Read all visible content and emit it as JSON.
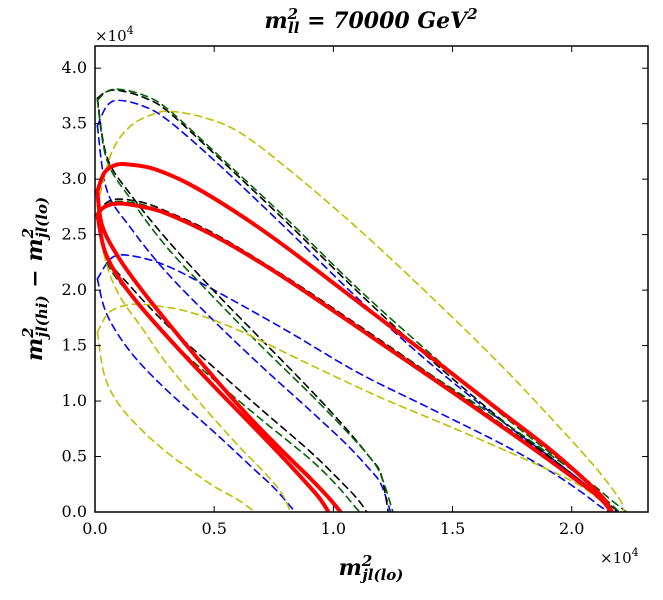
{
  "chart_data": {
    "type": "line",
    "title": {
      "main": "m",
      "sup": "2",
      "sub": "ll",
      "rest": " = 70000 GeV",
      "rest_sup": "2"
    },
    "xlabel": {
      "main": "m",
      "sup": "2",
      "sub": "jl(lo)"
    },
    "ylabel": {
      "a": "m",
      "a_sup": "2",
      "a_sub": "jl(hi)",
      "minus": " − ",
      "b": "m",
      "b_sup": "2",
      "b_sub": "jl(lo)"
    },
    "xlim": [
      0,
      23200
    ],
    "ylim": [
      0,
      42000
    ],
    "x_ticks": [
      0,
      5000,
      10000,
      15000,
      20000
    ],
    "x_tick_labels": [
      "0.0",
      "0.5",
      "1.0",
      "1.5",
      "2.0"
    ],
    "y_ticks": [
      0,
      5000,
      10000,
      15000,
      20000,
      25000,
      30000,
      35000,
      40000
    ],
    "y_tick_labels": [
      "0.0",
      "0.5",
      "1.0",
      "1.5",
      "2.0",
      "2.5",
      "3.0",
      "3.5",
      "4.0"
    ],
    "x_offset": {
      "base": "×10",
      "exp": "4"
    },
    "y_offset": {
      "base": "×10",
      "exp": "4"
    },
    "grid": false,
    "series": [
      {
        "name": "blue-outer",
        "color": "#0000ff",
        "style": "dashed",
        "width": 1.6,
        "curves": [
          [
            [
              100,
              34800
            ],
            [
              500,
              36600
            ],
            [
              1000,
              37100
            ],
            [
              2000,
              36600
            ],
            [
              3000,
              35400
            ],
            [
              5000,
              31700
            ],
            [
              8000,
              25600
            ],
            [
              11000,
              19300
            ],
            [
              14000,
              13500
            ],
            [
              17000,
              8300
            ],
            [
              19000,
              5100
            ],
            [
              20500,
              2600
            ],
            [
              21400,
              900
            ],
            [
              21900,
              0
            ]
          ],
          [
            [
              100,
              34800
            ],
            [
              500,
              29000
            ],
            [
              1500,
              25600
            ],
            [
              3000,
              21600
            ],
            [
              5000,
              17200
            ],
            [
              7000,
              13100
            ],
            [
              9000,
              9200
            ],
            [
              10500,
              6200
            ],
            [
              11500,
              3900
            ],
            [
              12000,
              2500
            ],
            [
              12400,
              0
            ]
          ]
        ]
      },
      {
        "name": "blue-inner",
        "color": "#0000ff",
        "style": "dashed",
        "width": 1.6,
        "curves": [
          [
            [
              100,
              21000
            ],
            [
              700,
              22900
            ],
            [
              1500,
              23100
            ],
            [
              3000,
              22200
            ],
            [
              5000,
              20000
            ],
            [
              8000,
              16400
            ],
            [
              11000,
              12600
            ],
            [
              14000,
              9400
            ],
            [
              17000,
              6200
            ],
            [
              19000,
              3800
            ],
            [
              20400,
              1800
            ],
            [
              21200,
              500
            ],
            [
              21600,
              0
            ]
          ],
          [
            [
              100,
              21000
            ],
            [
              500,
              17800
            ],
            [
              1500,
              14400
            ],
            [
              3000,
              11000
            ],
            [
              5000,
              7200
            ],
            [
              6500,
              4200
            ],
            [
              7500,
              2200
            ],
            [
              8200,
              500
            ],
            [
              8400,
              0
            ]
          ]
        ]
      },
      {
        "name": "black-outer",
        "color": "#000000",
        "style": "dashed",
        "width": 1.6,
        "curves": [
          [
            [
              100,
              37300
            ],
            [
              500,
              37900
            ],
            [
              1000,
              38000
            ],
            [
              2000,
              37400
            ],
            [
              3000,
              36200
            ],
            [
              5000,
              32300
            ],
            [
              8000,
              26200
            ],
            [
              11000,
              19900
            ],
            [
              14000,
              13900
            ],
            [
              17000,
              8400
            ],
            [
              19000,
              5100
            ],
            [
              20500,
              2600
            ],
            [
              21500,
              800
            ],
            [
              22000,
              0
            ]
          ],
          [
            [
              100,
              37300
            ],
            [
              500,
              32000
            ],
            [
              1500,
              28600
            ],
            [
              3000,
              24600
            ],
            [
              5000,
              19900
            ],
            [
              7000,
              15500
            ],
            [
              9000,
              11100
            ],
            [
              10500,
              7600
            ],
            [
              11500,
              5000
            ],
            [
              12000,
              3400
            ],
            [
              12300,
              0
            ]
          ]
        ]
      },
      {
        "name": "black-inner",
        "color": "#000000",
        "style": "dashed",
        "width": 1.6,
        "curves": [
          [
            [
              100,
              26900
            ],
            [
              500,
              27900
            ],
            [
              1000,
              28200
            ],
            [
              2000,
              27900
            ],
            [
              3000,
              27100
            ],
            [
              5000,
              25100
            ],
            [
              8000,
              21200
            ],
            [
              11000,
              16900
            ],
            [
              14000,
              12500
            ],
            [
              17000,
              8000
            ],
            [
              19000,
              5000
            ],
            [
              20300,
              2900
            ],
            [
              21200,
              1200
            ],
            [
              21600,
              0
            ]
          ],
          [
            [
              100,
              26900
            ],
            [
              500,
              23000
            ],
            [
              1500,
              20300
            ],
            [
              3000,
              16900
            ],
            [
              5000,
              13000
            ],
            [
              7000,
              9200
            ],
            [
              9000,
              5500
            ],
            [
              10200,
              3000
            ],
            [
              11000,
              1200
            ],
            [
              11400,
              0
            ]
          ]
        ]
      },
      {
        "name": "green-outer",
        "color": "#006400",
        "style": "dashed",
        "width": 1.6,
        "curves": [
          [
            [
              100,
              37100
            ],
            [
              500,
              37900
            ],
            [
              1000,
              38100
            ],
            [
              2000,
              37600
            ],
            [
              3000,
              36400
            ],
            [
              5000,
              32500
            ],
            [
              8000,
              26500
            ],
            [
              11000,
              20200
            ],
            [
              14000,
              14400
            ],
            [
              17000,
              8900
            ],
            [
              19000,
              5500
            ],
            [
              20800,
              2600
            ],
            [
              21700,
              1000
            ],
            [
              22300,
              0
            ]
          ],
          [
            [
              100,
              37100
            ],
            [
              500,
              31700
            ],
            [
              1500,
              28200
            ],
            [
              3000,
              23900
            ],
            [
              5000,
              19300
            ],
            [
              7000,
              14900
            ],
            [
              9000,
              10700
            ],
            [
              10500,
              7400
            ],
            [
              11500,
              5000
            ],
            [
              12000,
              3300
            ],
            [
              12500,
              0
            ]
          ]
        ]
      },
      {
        "name": "green-inner",
        "color": "#006400",
        "style": "dashed",
        "width": 1.6,
        "curves": [
          [
            [
              100,
              26700
            ],
            [
              500,
              27700
            ],
            [
              1000,
              28000
            ],
            [
              2000,
              27700
            ],
            [
              3000,
              26900
            ],
            [
              5000,
              24800
            ],
            [
              8000,
              21000
            ],
            [
              11000,
              16800
            ],
            [
              14000,
              12500
            ],
            [
              17000,
              8300
            ],
            [
              19000,
              5300
            ],
            [
              20500,
              3000
            ],
            [
              21500,
              1000
            ],
            [
              22000,
              0
            ]
          ],
          [
            [
              100,
              26700
            ],
            [
              500,
              22500
            ],
            [
              1500,
              19500
            ],
            [
              3000,
              15800
            ],
            [
              5000,
              11900
            ],
            [
              7000,
              8300
            ],
            [
              9000,
              4800
            ],
            [
              10100,
              2500
            ],
            [
              10900,
              500
            ],
            [
              11100,
              0
            ]
          ]
        ]
      },
      {
        "name": "yellow-outer",
        "color": "#bfbf00",
        "style": "dashed",
        "width": 1.6,
        "curves": [
          [
            [
              100,
              27600
            ],
            [
              700,
              32400
            ],
            [
              1500,
              34800
            ],
            [
              2500,
              35900
            ],
            [
              3200,
              36100
            ],
            [
              4500,
              35600
            ],
            [
              6000,
              34300
            ],
            [
              8000,
              31100
            ],
            [
              11000,
              25600
            ],
            [
              14000,
              19600
            ],
            [
              17000,
              13300
            ],
            [
              19500,
              7600
            ],
            [
              21000,
              4000
            ],
            [
              21800,
              1800
            ],
            [
              22100,
              800
            ],
            [
              22200,
              0
            ]
          ],
          [
            [
              100,
              27600
            ],
            [
              400,
              23000
            ],
            [
              1000,
              19600
            ],
            [
              2000,
              16500
            ],
            [
              3000,
              13400
            ],
            [
              4500,
              9600
            ],
            [
              6000,
              6000
            ],
            [
              7000,
              3800
            ],
            [
              7800,
              1800
            ],
            [
              8200,
              0
            ]
          ]
        ]
      },
      {
        "name": "yellow-inner",
        "color": "#bfbf00",
        "style": "dashed",
        "width": 1.6,
        "curves": [
          [
            [
              100,
              16200
            ],
            [
              600,
              18000
            ],
            [
              1500,
              18700
            ],
            [
              2500,
              18600
            ],
            [
              4000,
              18000
            ],
            [
              6000,
              16400
            ],
            [
              9000,
              13300
            ],
            [
              12000,
              10300
            ],
            [
              15000,
              7600
            ],
            [
              18000,
              4800
            ],
            [
              20000,
              2800
            ],
            [
              21000,
              1400
            ],
            [
              21500,
              400
            ],
            [
              21600,
              0
            ]
          ],
          [
            [
              100,
              16200
            ],
            [
              400,
              12300
            ],
            [
              1000,
              9700
            ],
            [
              2000,
              7300
            ],
            [
              3000,
              5400
            ],
            [
              4000,
              3800
            ],
            [
              5000,
              2300
            ],
            [
              6000,
              1100
            ],
            [
              6700,
              0
            ]
          ]
        ]
      },
      {
        "name": "red-outer",
        "color": "#ff0000",
        "style": "solid",
        "width": 4,
        "curves": [
          [
            [
              100,
              28900
            ],
            [
              400,
              30600
            ],
            [
              900,
              31300
            ],
            [
              1500,
              31300
            ],
            [
              2500,
              30900
            ],
            [
              4000,
              29500
            ],
            [
              6000,
              26900
            ],
            [
              8000,
              23900
            ],
            [
              11000,
              19000
            ],
            [
              14000,
              14100
            ],
            [
              17000,
              9100
            ],
            [
              19000,
              5800
            ],
            [
              20500,
              3000
            ],
            [
              21300,
              1300
            ],
            [
              21700,
              0
            ]
          ],
          [
            [
              100,
              28900
            ],
            [
              300,
              25800
            ],
            [
              1000,
              22900
            ],
            [
              2000,
              19900
            ],
            [
              3500,
              15900
            ],
            [
              5000,
              12100
            ],
            [
              6500,
              8500
            ],
            [
              8000,
              5200
            ],
            [
              9000,
              3100
            ],
            [
              9800,
              1300
            ],
            [
              10300,
              0
            ]
          ]
        ]
      },
      {
        "name": "red-inner",
        "color": "#ff0000",
        "style": "solid",
        "width": 4,
        "curves": [
          [
            [
              100,
              26800
            ],
            [
              400,
              27500
            ],
            [
              1000,
              27800
            ],
            [
              2000,
              27500
            ],
            [
              3000,
              26900
            ],
            [
              5000,
              24900
            ],
            [
              7000,
              22400
            ],
            [
              9000,
              19600
            ],
            [
              12000,
              15200
            ],
            [
              15000,
              10800
            ],
            [
              18000,
              6300
            ],
            [
              20000,
              3200
            ],
            [
              21000,
              1600
            ],
            [
              21500,
              500
            ],
            [
              21600,
              0
            ]
          ],
          [
            [
              100,
              26800
            ],
            [
              400,
              23600
            ],
            [
              1000,
              21100
            ],
            [
              2000,
              18300
            ],
            [
              3500,
              14700
            ],
            [
              5000,
              11300
            ],
            [
              6500,
              8000
            ],
            [
              7800,
              5100
            ],
            [
              8700,
              3000
            ],
            [
              9400,
              1300
            ],
            [
              9800,
              0
            ]
          ]
        ]
      }
    ]
  }
}
